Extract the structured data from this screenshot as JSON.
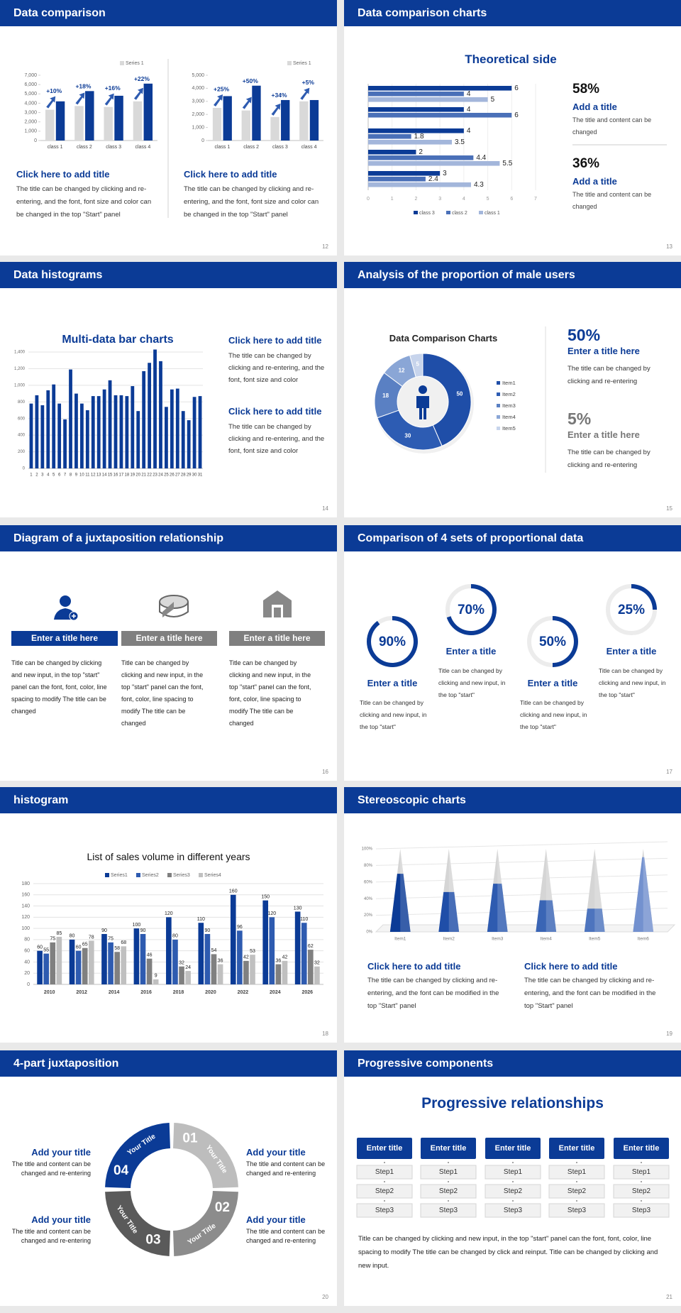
{
  "slides": [
    {
      "header": "Data comparison",
      "page": 12,
      "charts": [
        {
          "type": "bar",
          "categories": [
            "class 1",
            "class 2",
            "class 3",
            "class 4"
          ],
          "series": [
            {
              "name": "Series 1",
              "color": "#d9d9d9",
              "values": [
                3300,
                3700,
                3600,
                4200
              ]
            },
            {
              "color": "#0b3b96",
              "values": [
                4200,
                5300,
                4800,
                6100
              ]
            }
          ],
          "annotations": [
            "+10%",
            "+18%",
            "+16%",
            "+22%"
          ],
          "ylim": [
            0,
            7000
          ],
          "yticks": [
            0,
            {
              "value": 1000,
              "label": "1,000"
            },
            {
              "value": 2000,
              "label": "2,000"
            },
            {
              "value": 3000,
              "label": "3,000"
            },
            {
              "value": 4000,
              "label": "4,000"
            },
            {
              "value": 5000,
              "label": "5,000"
            },
            {
              "value": 6000,
              "label": "6,000"
            },
            {
              "value": 7000,
              "label": "7,000"
            }
          ],
          "grid": false
        },
        {
          "type": "bar",
          "categories": [
            "class 1",
            "class 2",
            "class 3",
            "class 4"
          ],
          "series": [
            {
              "name": "Series 1",
              "color": "#d9d9d9",
              "values": [
                2500,
                2300,
                1800,
                3000
              ]
            },
            {
              "color": "#0b3b96",
              "values": [
                3400,
                4200,
                3100,
                3100
              ]
            }
          ],
          "annotations": [
            "+25%",
            "+50%",
            "+34%",
            "+5%"
          ],
          "ylim": [
            0,
            5000
          ],
          "yticks": [
            0,
            {
              "value": 1000,
              "label": "1,000"
            },
            {
              "value": 2000,
              "label": "2,000"
            },
            {
              "value": 3000,
              "label": "3,000"
            },
            {
              "value": 4000,
              "label": "4,000"
            },
            {
              "value": 5000,
              "label": "5,000"
            }
          ],
          "grid": false
        }
      ],
      "blocks": [
        {
          "title": "Click here to add title",
          "text": "The title can be changed by clicking and re-entering, and the font, font size and color can be changed in the top \"Start\" panel"
        },
        {
          "title": "Click here to add title",
          "text": "The title can be changed by clicking and re-entering, and the font, font size and color can be changed in the top \"Start\" panel"
        }
      ]
    },
    {
      "header": "Data comparison charts",
      "page": 13,
      "chart": {
        "type": "hbar",
        "title": "Theoretical side",
        "categories": [
          null,
          null,
          null,
          null,
          null
        ],
        "series": [
          {
            "name": "class 3",
            "color": "#0b3b96",
            "values": [
              6,
              4,
              4,
              2,
              3
            ]
          },
          {
            "name": "class 2",
            "color": "#4a70b8",
            "values": [
              4,
              6,
              1.8,
              4.4,
              2.4
            ]
          },
          {
            "name": "class 1",
            "color": "#a3b6db",
            "values": [
              5,
              null,
              3.5,
              5.5,
              4.3
            ]
          }
        ],
        "xlim": [
          0,
          7
        ],
        "xticks": [
          0,
          1,
          2,
          3,
          4,
          5,
          6,
          7
        ],
        "grid": true
      },
      "stats": [
        {
          "value": "58%",
          "title": "Add a title",
          "text": "The title and content can be changed"
        },
        {
          "value": "36%",
          "title": "Add a title",
          "text": "The title and content can be changed"
        }
      ]
    },
    {
      "header": "Data histograms",
      "page": 14,
      "chart": {
        "type": "bar",
        "title": "Multi-data bar charts",
        "categories": [
          1,
          2,
          3,
          4,
          5,
          6,
          7,
          8,
          9,
          10,
          11,
          12,
          13,
          14,
          15,
          16,
          17,
          18,
          19,
          20,
          21,
          22,
          23,
          24,
          25,
          26,
          27,
          28,
          29,
          30,
          31
        ],
        "series": [
          {
            "color": "#0b3b96",
            "values": [
              780,
              880,
              760,
              940,
              1010,
              780,
              590,
              1190,
              900,
              780,
              700,
              870,
              870,
              950,
              1060,
              880,
              880,
              870,
              990,
              690,
              1170,
              1270,
              1430,
              1290,
              740,
              950,
              960,
              690,
              580,
              860,
              870
            ]
          }
        ],
        "ylim": [
          0,
          1400
        ],
        "yticks": [
          0,
          200,
          400,
          600,
          800,
          {
            "value": 1000,
            "label": "1,000"
          },
          {
            "value": 1200,
            "label": "1,200"
          },
          {
            "value": 1400,
            "label": "1,400"
          }
        ],
        "grid": true
      },
      "blocks": [
        {
          "title": "Click here to add title",
          "text": "The title can be changed by clicking and re-entering, and the font, font size and color"
        },
        {
          "title": "Click here to add title",
          "text": "The title can be changed by clicking and re-entering, and the font, font size and color"
        }
      ]
    },
    {
      "header": "Analysis of the proportion of male users",
      "page": 15,
      "chart": {
        "type": "donut",
        "title": "Data Comparison Charts",
        "categories": [
          "Item1",
          "Item2",
          "Item3",
          "Item4",
          "Item5"
        ],
        "values": [
          50,
          30,
          18,
          12,
          5
        ],
        "colors": [
          "#1f4ea8",
          "#2d5cb3",
          "#5a80c3",
          "#8aa6d6",
          "#c7d4ec"
        ]
      },
      "stats": [
        {
          "value": "50%",
          "title": "Enter a title here",
          "text": "The title can be changed by clicking and re-entering"
        },
        {
          "value": "5%",
          "title": "Enter a title here",
          "text": "The title can be changed by clicking and re-entering"
        }
      ]
    },
    {
      "header": "Diagram of a juxtaposition relationship",
      "page": 16,
      "items": [
        {
          "title": "Enter a title here",
          "text": "Title can be changed by clicking and new input, in the top \"start\" panel can the font, font, color, line spacing to modify The title can be changed"
        },
        {
          "title": "Enter a title here",
          "text": "Title can be changed by clicking and new input, in the top \"start\" panel can the font, font, color, line spacing to modify The title can be changed"
        },
        {
          "title": "Enter a title here",
          "text": "Title can be changed by clicking and new input, in the top \"start\" panel can the font, font, color, line spacing to modify The title can be changed"
        }
      ]
    },
    {
      "header": "Comparison of 4 sets of proportional data",
      "page": 17,
      "chart": {
        "type": "ring",
        "values": [
          90,
          70,
          50,
          25
        ],
        "value_labels": [
          "90%",
          "70%",
          "50%",
          "25%"
        ]
      },
      "items": [
        {
          "title": "Enter a title",
          "text": "Title can be changed by clicking and new input, in the top \"start\""
        },
        {
          "title": "Enter a title",
          "text": "Title can be changed by clicking and new input, in the top \"start\""
        },
        {
          "title": "Enter a title",
          "text": "Title can be changed by clicking and new input, in the top \"start\""
        },
        {
          "title": "Enter a title",
          "text": "Title can be changed by clicking and new input, in the top \"start\""
        }
      ]
    },
    {
      "header": "histogram",
      "page": 18,
      "chart": {
        "type": "bar",
        "title": "List of sales volume in different years",
        "categories": [
          2010,
          2012,
          2014,
          2016,
          2018,
          2020,
          2022,
          2024,
          2026
        ],
        "series": [
          {
            "name": "Series1",
            "color": "#0b3b96",
            "values": [
              60,
              80,
              90,
              100,
              120,
              110,
              160,
              150,
              130
            ]
          },
          {
            "name": "Series2",
            "color": "#2e5bb0",
            "values": [
              55,
              60,
              75,
              90,
              80,
              90,
              96,
              120,
              110
            ]
          },
          {
            "name": "Series3",
            "color": "#808080",
            "values": [
              75,
              65,
              58,
              46,
              32,
              54,
              42,
              36,
              62
            ]
          },
          {
            "name": "Series4",
            "color": "#c0c0c0",
            "values": [
              85,
              78,
              68,
              9,
              24,
              36,
              53,
              42,
              32
            ]
          }
        ],
        "ylim": [
          0,
          180
        ],
        "yticks": [
          0,
          20,
          40,
          60,
          80,
          100,
          120,
          140,
          160,
          180
        ],
        "grid": true,
        "data_labels": true
      }
    },
    {
      "header": "Stereoscopic charts",
      "page": 19,
      "chart": {
        "type": "cone",
        "categories": [
          "Item1",
          "Item2",
          "Item3",
          "Item4",
          "Item5",
          "Item6"
        ],
        "values": [
          70,
          48,
          58,
          38,
          28,
          90
        ],
        "colors": [
          "#0b3b96",
          "#1f4ea8",
          "#2e5bb0",
          "#3a65b5",
          "#4d74be",
          "#7391cf"
        ],
        "ylim": [
          0,
          100
        ],
        "yticks": [
          {
            "value": 0,
            "label": "0%"
          },
          {
            "value": 20,
            "label": "20%"
          },
          {
            "value": 40,
            "label": "40%"
          },
          {
            "value": 60,
            "label": "60%"
          },
          {
            "value": 80,
            "label": "80%"
          },
          {
            "value": 100,
            "label": "100%"
          }
        ],
        "grid": true
      },
      "blocks": [
        {
          "title": "Click here to add title",
          "text": "The title can be changed by clicking and re-entering, and the font can be modified in the top \"Start\" panel"
        },
        {
          "title": "Click here to add title",
          "text": "The title can be changed by clicking and re-entering, and the font can be modified in the top \"Start\" panel"
        }
      ]
    },
    {
      "header": "4-part juxtaposition",
      "page": 20,
      "segments": [
        {
          "number": "01",
          "label": "Your Title"
        },
        {
          "number": "02",
          "label": "Your Title"
        },
        {
          "number": "03",
          "label": "Your Title"
        },
        {
          "number": "04",
          "label": "Your Title"
        }
      ],
      "items": [
        {
          "title": "Add your title",
          "text": "The title and content can be changed and re-entering"
        },
        {
          "title": "Add your title",
          "text": "The title and content can be changed and re-entering"
        },
        {
          "title": "Add your title",
          "text": "The title and content can be changed and re-entering"
        },
        {
          "title": "Add your title",
          "text": "The title and content can be changed and re-entering"
        }
      ]
    },
    {
      "header": "Progressive components",
      "page": 21,
      "title": "Progressive relationships",
      "columns": [
        {
          "title": "Enter title",
          "steps": [
            "Step1",
            "Step2",
            "Step3"
          ]
        },
        {
          "title": "Enter title",
          "steps": [
            "Step1",
            "Step2",
            "Step3"
          ]
        },
        {
          "title": "Enter title",
          "steps": [
            "Step1",
            "Step2",
            "Step3"
          ]
        },
        {
          "title": "Enter title",
          "steps": [
            "Step1",
            "Step2",
            "Step3"
          ]
        },
        {
          "title": "Enter title",
          "steps": [
            "Step1",
            "Step2",
            "Step3"
          ]
        }
      ],
      "text": "Title can be changed by clicking and new input, in the top \"start\" panel can the font, font, color, line spacing to modify The title can be changed by click and reinput. Title can be changed by clicking and new input."
    }
  ]
}
